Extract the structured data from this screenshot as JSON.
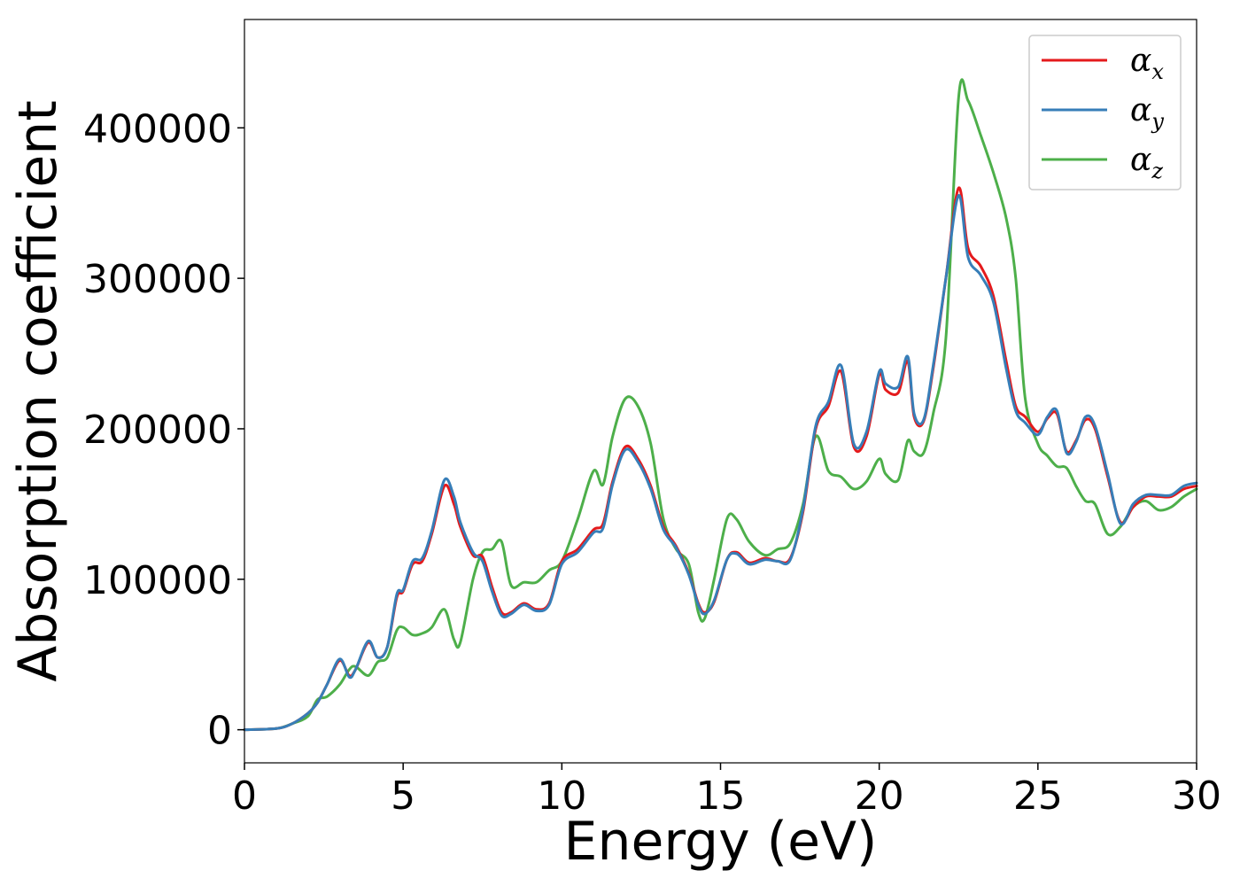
{
  "chart_data": {
    "type": "line",
    "title": "",
    "xlabel": "Energy (eV)",
    "ylabel": "Absorption coefficient",
    "xlim": [
      0,
      30
    ],
    "ylim": [
      -22000,
      472000
    ],
    "xticks": [
      0,
      5,
      10,
      15,
      20,
      25,
      30
    ],
    "yticks": [
      0,
      100000,
      200000,
      300000,
      400000
    ],
    "grid": false,
    "legend_position": "top-right",
    "series": [
      {
        "name": "αx",
        "symbol": "α",
        "subscript": "x",
        "color": "#e41a1c",
        "x": [
          0,
          1,
          1.5,
          2,
          2.3,
          2.6,
          3,
          3.3,
          3.5,
          3.9,
          4.2,
          4.5,
          4.8,
          5,
          5.3,
          5.6,
          5.9,
          6.3,
          6.6,
          6.8,
          7.2,
          7.5,
          7.8,
          8.1,
          8.4,
          8.8,
          9.2,
          9.6,
          10,
          10.5,
          11,
          11.3,
          11.6,
          12,
          12.4,
          12.8,
          13.2,
          13.6,
          14,
          14.3,
          14.5,
          14.8,
          15.2,
          15.5,
          15.9,
          16.4,
          16.8,
          17.2,
          17.6,
          18,
          18.4,
          18.8,
          19.2,
          19.6,
          20,
          20.2,
          20.6,
          20.9,
          21.1,
          21.4,
          21.7,
          22.1,
          22.5,
          22.8,
          23.2,
          23.6,
          24,
          24.3,
          24.6,
          25,
          25.3,
          25.6,
          25.9,
          26.2,
          26.5,
          26.8,
          27.2,
          27.6,
          28,
          28.4,
          28.8,
          29.2,
          29.6,
          30
        ],
        "y": [
          0,
          800,
          4000,
          11000,
          18000,
          30000,
          46000,
          36000,
          40000,
          58000,
          48000,
          55000,
          88000,
          92000,
          110000,
          112000,
          130000,
          162000,
          150000,
          135000,
          116000,
          115000,
          95000,
          78000,
          78000,
          84000,
          80000,
          84000,
          112000,
          120000,
          133000,
          137000,
          165000,
          188000,
          180000,
          162000,
          135000,
          122000,
          104000,
          84000,
          78000,
          85000,
          113000,
          118000,
          111000,
          114000,
          112000,
          114000,
          145000,
          200000,
          215000,
          238000,
          188000,
          195000,
          236000,
          226000,
          224000,
          245000,
          208000,
          205000,
          240000,
          300000,
          360000,
          320000,
          308000,
          288000,
          245000,
          215000,
          208000,
          198000,
          207000,
          210000,
          185000,
          192000,
          206000,
          200000,
          168000,
          138000,
          148000,
          155000,
          155000,
          155000,
          160000,
          162000
        ]
      },
      {
        "name": "αy",
        "symbol": "α",
        "subscript": "y",
        "color": "#377eb8",
        "x": [
          0,
          1,
          1.5,
          2,
          2.3,
          2.6,
          3,
          3.3,
          3.5,
          3.9,
          4.2,
          4.5,
          4.8,
          5,
          5.3,
          5.6,
          5.9,
          6.3,
          6.6,
          6.8,
          7.2,
          7.5,
          7.8,
          8.1,
          8.4,
          8.8,
          9.2,
          9.6,
          10,
          10.5,
          11,
          11.3,
          11.6,
          12,
          12.4,
          12.8,
          13.2,
          13.6,
          14,
          14.3,
          14.5,
          14.8,
          15.2,
          15.5,
          15.9,
          16.4,
          16.8,
          17.2,
          17.6,
          18,
          18.4,
          18.8,
          19.2,
          19.6,
          20,
          20.2,
          20.6,
          20.9,
          21.1,
          21.4,
          21.7,
          22.1,
          22.5,
          22.8,
          23.2,
          23.6,
          24,
          24.3,
          24.6,
          25,
          25.3,
          25.6,
          25.9,
          26.2,
          26.5,
          26.8,
          27.2,
          27.6,
          28,
          28.4,
          28.8,
          29.2,
          29.6,
          30
        ],
        "y": [
          0,
          800,
          4000,
          11000,
          18000,
          30000,
          47000,
          35000,
          40000,
          59000,
          48000,
          55000,
          90000,
          93000,
          112000,
          114000,
          132000,
          166000,
          155000,
          138000,
          118000,
          112000,
          92000,
          76000,
          77000,
          83000,
          79000,
          83000,
          110000,
          118000,
          131000,
          134000,
          163000,
          186000,
          178000,
          160000,
          133000,
          121000,
          103000,
          83000,
          77000,
          86000,
          113000,
          117000,
          110000,
          113000,
          112000,
          113000,
          147000,
          202000,
          218000,
          242000,
          190000,
          198000,
          238000,
          230000,
          228000,
          248000,
          210000,
          206000,
          242000,
          300000,
          355000,
          314000,
          302000,
          284000,
          240000,
          212000,
          204000,
          196000,
          208000,
          212000,
          184000,
          191000,
          208000,
          202000,
          170000,
          137000,
          150000,
          156000,
          156000,
          156000,
          162000,
          164000
        ]
      },
      {
        "name": "αz",
        "symbol": "α",
        "subscript": "z",
        "color": "#4daf4a",
        "x": [
          0,
          1,
          1.5,
          2,
          2.3,
          2.6,
          3,
          3.3,
          3.5,
          3.9,
          4.2,
          4.5,
          4.8,
          5,
          5.3,
          5.6,
          5.9,
          6.3,
          6.6,
          6.8,
          7.2,
          7.5,
          7.8,
          8.1,
          8.4,
          8.8,
          9.2,
          9.6,
          10,
          10.5,
          11,
          11.3,
          11.6,
          12,
          12.4,
          12.8,
          13.2,
          13.6,
          14,
          14.3,
          14.5,
          14.8,
          15.2,
          15.5,
          15.9,
          16.4,
          16.8,
          17.2,
          17.6,
          18,
          18.4,
          18.8,
          19.2,
          19.6,
          20,
          20.2,
          20.6,
          20.9,
          21.1,
          21.4,
          21.7,
          22.1,
          22.5,
          22.8,
          23.2,
          23.6,
          24,
          24.3,
          24.6,
          25,
          25.3,
          25.6,
          25.9,
          26.2,
          26.5,
          26.8,
          27.2,
          27.6,
          28,
          28.4,
          28.8,
          29.2,
          29.6,
          30
        ],
        "y": [
          0,
          800,
          4000,
          9000,
          20000,
          22000,
          30000,
          40000,
          42000,
          36000,
          45000,
          48000,
          66000,
          68000,
          63000,
          64000,
          68000,
          80000,
          60000,
          58000,
          100000,
          118000,
          120000,
          125000,
          96000,
          98000,
          98000,
          106000,
          112000,
          140000,
          172000,
          163000,
          195000,
          220000,
          215000,
          190000,
          140000,
          120000,
          110000,
          78000,
          74000,
          100000,
          140000,
          140000,
          125000,
          116000,
          120000,
          124000,
          150000,
          195000,
          172000,
          168000,
          160000,
          165000,
          180000,
          170000,
          166000,
          192000,
          185000,
          184000,
          210000,
          260000,
          420000,
          418000,
          395000,
          370000,
          340000,
          300000,
          220000,
          190000,
          182000,
          175000,
          174000,
          162000,
          152000,
          150000,
          130000,
          135000,
          148000,
          152000,
          146000,
          148000,
          155000,
          160000
        ]
      }
    ]
  }
}
